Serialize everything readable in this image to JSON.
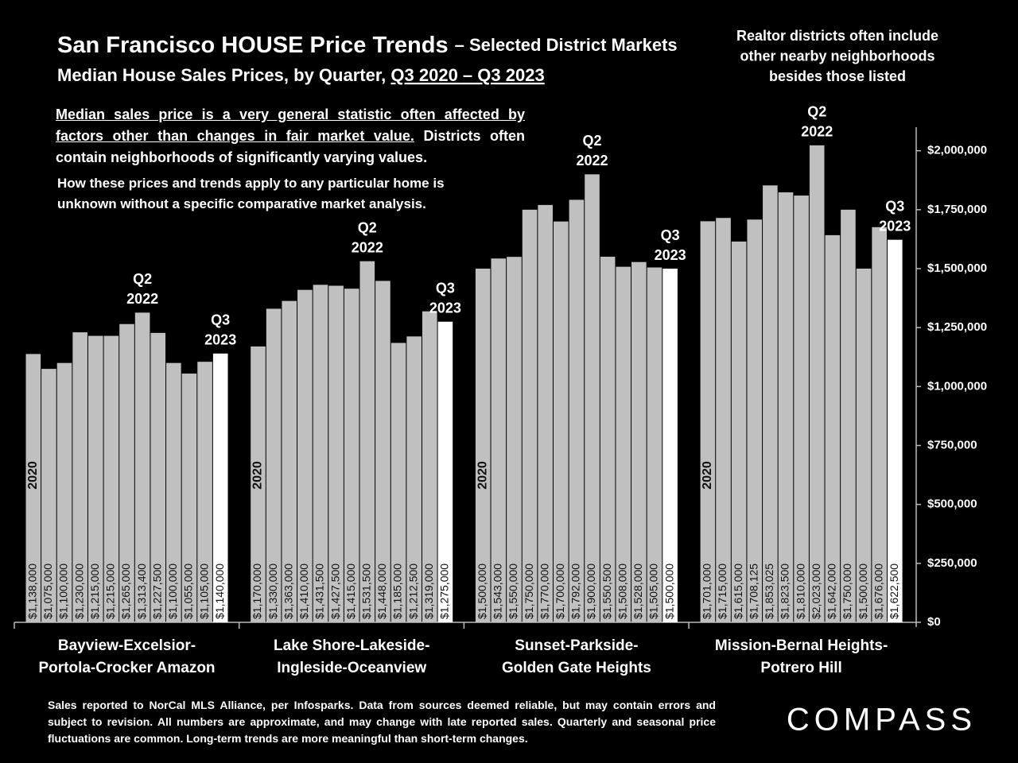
{
  "chart_data": {
    "type": "bar",
    "title": "San Francisco HOUSE Price Trends",
    "title_suffix": "– Selected District Markets",
    "subtitle": "Median House Sales Prices, by Quarter,",
    "subtitle_range": "Q3 2020 – Q3 2023",
    "side_note": [
      "Realtor districts often include",
      "other nearby neighborhoods",
      "besides those listed"
    ],
    "caveat_underlined": "Median sales price is a very general statistic often affected by factors other than changes in fair market value.",
    "caveat_rest": "Districts often contain neighborhoods of significantly varying values.",
    "caveat_second": "How these prices and trends apply to any particular home is unknown without a specific comparative market analysis.",
    "footnote": "Sales reported to NorCal MLS Alliance, per Infosparks. Data from sources deemed reliable, but may contain errors and subject to revision. All numbers are approximate, and may change with late reported sales. Quarterly and seasonal price fluctuations are common. Long-term trends are more meaningful than short-term changes.",
    "logo": "COMPASS",
    "ylim": [
      0,
      2100000
    ],
    "yticks": [
      {
        "value": 0,
        "label": "$0"
      },
      {
        "value": 250000,
        "label": "$250,000"
      },
      {
        "value": 500000,
        "label": "$500,000"
      },
      {
        "value": 750000,
        "label": "$750,000"
      },
      {
        "value": 1000000,
        "label": "$1,000,000"
      },
      {
        "value": 1250000,
        "label": "$1,250,000"
      },
      {
        "value": 1500000,
        "label": "$1,500,000"
      },
      {
        "value": 1750000,
        "label": "$1,750,000"
      },
      {
        "value": 2000000,
        "label": "$2,000,000"
      }
    ],
    "groups": [
      {
        "label_lines": [
          "Bayview-Excelsior-",
          "Portola-Crocker Amazon"
        ],
        "values": [
          1138000,
          1075000,
          1100000,
          1230000,
          1215000,
          1215000,
          1265000,
          1313400,
          1227500,
          1100000,
          1055000,
          1105000,
          1140000
        ],
        "value_labels": [
          "$1,138,000",
          "$1,075,000",
          "$1,100,000",
          "$1,230,000",
          "$1,215,000",
          "$1,215,000",
          "$1,265,000",
          "$1,313,400",
          "$1,227,500",
          "$1,100,000",
          "$1,055,000",
          "$1,105,000",
          "$1,140,000"
        ],
        "colors": [
          "#c0c0c0",
          "#c0c0c0",
          "#c0c0c0",
          "#c0c0c0",
          "#c0c0c0",
          "#c0c0c0",
          "#c0c0c0",
          "#c0c0c0",
          "#c0c0c0",
          "#c0c0c0",
          "#c0c0c0",
          "#c0c0c0",
          "#ffffff"
        ],
        "bar_notes": [
          [
            "2020"
          ],
          null,
          null,
          null,
          null,
          null,
          null,
          [
            "Q2",
            "2022"
          ],
          null,
          null,
          null,
          null,
          [
            "Q3",
            "2023"
          ]
        ]
      },
      {
        "label_lines": [
          "Lake Shore-Lakeside-",
          "Ingleside-Oceanview"
        ],
        "values": [
          1170000,
          1330000,
          1363000,
          1410000,
          1431500,
          1427500,
          1415000,
          1531500,
          1448000,
          1185000,
          1212500,
          1319000,
          1275000
        ],
        "value_labels": [
          "$1,170,000",
          "$1,330,000",
          "$1,363,000",
          "$1,410,000",
          "$1,431,500",
          "$1,427,500",
          "$1,415,000",
          "$1,531,500",
          "$1,448,000",
          "$1,185,000",
          "$1,212,500",
          "$1,319,000",
          "$1,275,000"
        ],
        "colors": [
          "#c0c0c0",
          "#c0c0c0",
          "#c0c0c0",
          "#c0c0c0",
          "#c0c0c0",
          "#c0c0c0",
          "#c0c0c0",
          "#c0c0c0",
          "#c0c0c0",
          "#c0c0c0",
          "#c0c0c0",
          "#c0c0c0",
          "#ffffff"
        ],
        "bar_notes": [
          [
            "2020"
          ],
          null,
          null,
          null,
          null,
          null,
          null,
          [
            "Q2",
            "2022"
          ],
          null,
          null,
          null,
          null,
          [
            "Q3",
            "2023"
          ]
        ]
      },
      {
        "label_lines": [
          "Sunset-Parkside-",
          "Golden Gate Heights"
        ],
        "values": [
          1500000,
          1543000,
          1550000,
          1750000,
          1770000,
          1700000,
          1792000,
          1900000,
          1550500,
          1508000,
          1528000,
          1505000,
          1500000
        ],
        "value_labels": [
          "$1,500,000",
          "$1,543,000",
          "$1,550,000",
          "$1,750,000",
          "$1,770,000",
          "$1,700,000",
          "$1,792,000",
          "$1,900,000",
          "$1,550,500",
          "$1,508,000",
          "$1,528,000",
          "$1,505,000",
          "$1,500,000"
        ],
        "colors": [
          "#c0c0c0",
          "#c0c0c0",
          "#c0c0c0",
          "#c0c0c0",
          "#c0c0c0",
          "#c0c0c0",
          "#c0c0c0",
          "#c0c0c0",
          "#c0c0c0",
          "#c0c0c0",
          "#c0c0c0",
          "#c0c0c0",
          "#ffffff"
        ],
        "bar_notes": [
          [
            "2020"
          ],
          null,
          null,
          null,
          null,
          null,
          null,
          [
            "Q2",
            "2022"
          ],
          null,
          null,
          null,
          null,
          [
            "Q3",
            "2023"
          ]
        ]
      },
      {
        "label_lines": [
          "Mission-Bernal Heights-",
          "Potrero Hill"
        ],
        "values": [
          1701000,
          1715000,
          1615000,
          1708125,
          1853025,
          1823500,
          1810000,
          2023000,
          1642000,
          1750000,
          1500000,
          1676000,
          1622500
        ],
        "value_labels": [
          "$1,701,000",
          "$1,715,000",
          "$1,615,000",
          "$1,708,125",
          "$1,853,025",
          "$1,823,500",
          "$1,810,000",
          "$2,023,000",
          "$1,642,000",
          "$1,750,000",
          "$1,500,000",
          "$1,676,000",
          "$1,622,500"
        ],
        "colors": [
          "#c0c0c0",
          "#c0c0c0",
          "#c0c0c0",
          "#c0c0c0",
          "#c0c0c0",
          "#c0c0c0",
          "#c0c0c0",
          "#c0c0c0",
          "#c0c0c0",
          "#c0c0c0",
          "#c0c0c0",
          "#c0c0c0",
          "#ffffff"
        ],
        "bar_notes": [
          [
            "2020"
          ],
          null,
          null,
          null,
          null,
          null,
          null,
          [
            "Q2",
            "2022"
          ],
          null,
          null,
          null,
          null,
          [
            "Q3",
            "2023"
          ]
        ]
      }
    ]
  }
}
